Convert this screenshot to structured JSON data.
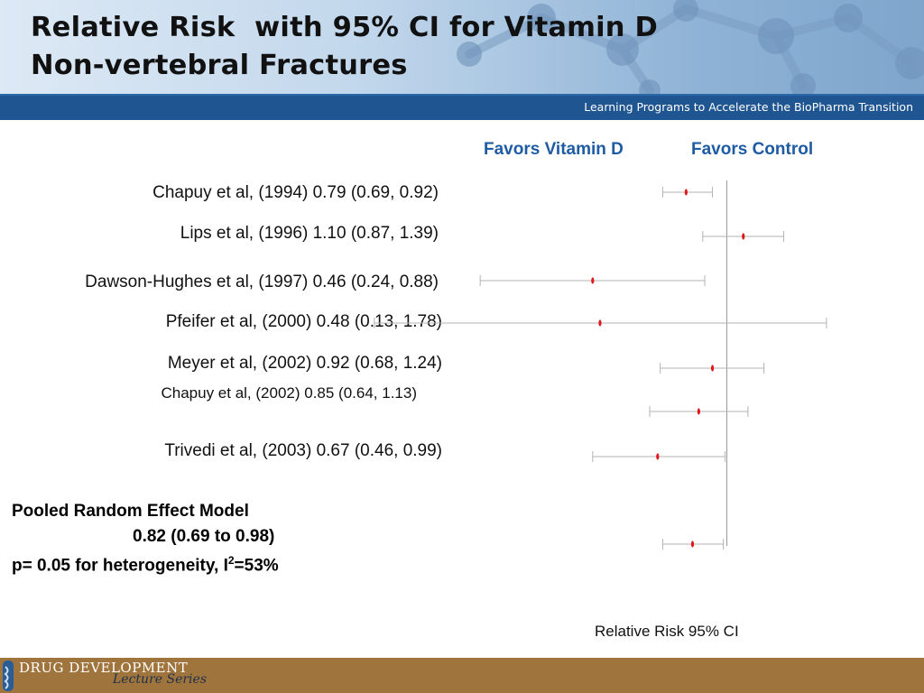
{
  "slide": {
    "title_line1": "Relative Risk  with 95% CI for Vitamin D",
    "title_line2": "Non-vertebral Fractures",
    "tagline": "Learning Programs to Accelerate the BioPharma Transition",
    "footer_line1": "DRUG DEVELOPMENT",
    "footer_line2": "Lecture Series"
  },
  "labels": {
    "favors_left": "Favors Vitamin D",
    "favors_right": "Favors Control",
    "pooled_title": "Pooled Random Effect Model",
    "pooled_estimate": "0.82 (0.69 to 0.98)",
    "heterogeneity_prefix": "p= 0.05 for heterogeneity, I",
    "heterogeneity_sup": "2",
    "heterogeneity_suffix": "=53%"
  },
  "chart_data": {
    "type": "forest",
    "xlabel": "Relative Risk 95% CI",
    "reference_line": 1.0,
    "point_color": "#e0161b",
    "line_color": "#b3b3b3",
    "studies": [
      {
        "label": "Chapuy et al, (1994) 0.79 (0.69, 0.92)",
        "rr": 0.79,
        "lower": 0.69,
        "upper": 0.92
      },
      {
        "label": "Lips et al, (1996) 1.10 (0.87, 1.39)",
        "rr": 1.1,
        "lower": 0.87,
        "upper": 1.39
      },
      {
        "label": "Dawson-Hughes et al, (1997) 0.46 (0.24, 0.88)",
        "rr": 0.46,
        "lower": 0.24,
        "upper": 0.88
      },
      {
        "label": "Pfeifer et al, (2000) 0.48 (0.13, 1.78)",
        "rr": 0.48,
        "lower": 0.13,
        "upper": 1.78
      },
      {
        "label": "Meyer et al, (2002) 0.92 (0.68, 1.24)",
        "rr": 0.92,
        "lower": 0.68,
        "upper": 1.24
      },
      {
        "label": "Chapuy et al, (2002) 0.85 (0.64, 1.13)",
        "rr": 0.85,
        "lower": 0.64,
        "upper": 1.13
      },
      {
        "label": "Trivedi et al, (2003) 0.67 (0.46, 0.99)",
        "rr": 0.67,
        "lower": 0.46,
        "upper": 0.99
      }
    ],
    "pooled": {
      "rr": 0.82,
      "lower": 0.69,
      "upper": 0.98
    }
  }
}
